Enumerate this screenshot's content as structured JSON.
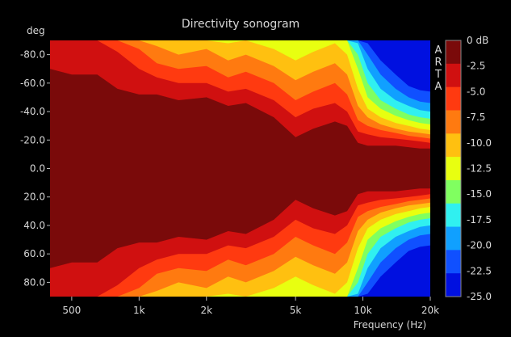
{
  "chart_data": {
    "type": "heatmap",
    "title": "Directivity sonogram",
    "ylabel": "deg",
    "xlabel": "Frequency (Hz)",
    "watermark": "ARTA",
    "x_scale": "log",
    "xlim": [
      400,
      20000
    ],
    "ylim": [
      -90,
      90
    ],
    "x_ticks": [
      {
        "value": 500,
        "label": "500"
      },
      {
        "value": 1000,
        "label": "1k"
      },
      {
        "value": 2000,
        "label": "2k"
      },
      {
        "value": 5000,
        "label": "5k"
      },
      {
        "value": 10000,
        "label": "10k"
      },
      {
        "value": 20000,
        "label": "20k"
      }
    ],
    "y_ticks": [
      {
        "value": -80,
        "label": "-80.0"
      },
      {
        "value": -60,
        "label": "-60.0"
      },
      {
        "value": -40,
        "label": "-40.0"
      },
      {
        "value": -20,
        "label": "-20.0"
      },
      {
        "value": 0,
        "label": "0.0"
      },
      {
        "value": 20,
        "label": "20.0"
      },
      {
        "value": 40,
        "label": "40.0"
      },
      {
        "value": 60,
        "label": "60.0"
      },
      {
        "value": 80,
        "label": "80.0"
      }
    ],
    "colorbar": {
      "unit": "dB",
      "range": [
        -25,
        0
      ],
      "labels": [
        "0 dB",
        "-2.5",
        "-5.0",
        "-7.5",
        "-10.0",
        "-12.5",
        "-15.0",
        "-17.5",
        "-20.0",
        "-22.5",
        "-25.0"
      ],
      "colors": [
        "#7a0a0a",
        "#d01010",
        "#ff3a10",
        "#ff7a10",
        "#ffc010",
        "#e8ff10",
        "#80ff60",
        "#30f0f0",
        "#10a0ff",
        "#1050ff",
        "#0010e0"
      ]
    },
    "contour_frequencies_hz": [
      400,
      500,
      650,
      800,
      1000,
      1200,
      1500,
      2000,
      2500,
      3000,
      4000,
      5000,
      6000,
      7500,
      8500,
      9500,
      10500,
      12000,
      14000,
      16000,
      18000,
      20000
    ],
    "level_boundaries_deg": [
      {
        "level": -2.5,
        "angles": [
          70,
          66,
          66,
          56,
          52,
          52,
          48,
          50,
          44,
          46,
          36,
          22,
          28,
          33,
          30,
          18,
          16,
          16,
          16,
          15,
          14,
          14
        ]
      },
      {
        "level": -5.0,
        "angles": [
          90,
          90,
          90,
          82,
          70,
          64,
          60,
          60,
          54,
          56,
          48,
          36,
          42,
          46,
          40,
          26,
          24,
          22,
          21,
          20,
          19,
          18
        ]
      },
      {
        "level": -7.5,
        "angles": [
          90,
          90,
          90,
          90,
          84,
          74,
          70,
          72,
          64,
          68,
          60,
          48,
          54,
          60,
          52,
          34,
          30,
          27,
          25,
          23,
          22,
          21
        ]
      },
      {
        "level": -10.0,
        "angles": [
          90,
          90,
          90,
          90,
          90,
          86,
          80,
          84,
          76,
          80,
          72,
          62,
          68,
          74,
          66,
          44,
          36,
          31,
          28,
          26,
          25,
          24
        ]
      },
      {
        "level": -12.5,
        "angles": [
          90,
          90,
          90,
          90,
          90,
          90,
          90,
          90,
          88,
          90,
          84,
          76,
          82,
          88,
          80,
          56,
          42,
          36,
          32,
          30,
          28,
          27
        ]
      },
      {
        "level": -15.0,
        "angles": [
          90,
          90,
          90,
          90,
          90,
          90,
          90,
          90,
          90,
          90,
          90,
          90,
          90,
          90,
          90,
          70,
          50,
          42,
          37,
          34,
          32,
          31
        ]
      },
      {
        "level": -17.5,
        "angles": [
          90,
          90,
          90,
          90,
          90,
          90,
          90,
          90,
          90,
          90,
          90,
          90,
          90,
          90,
          90,
          80,
          60,
          48,
          42,
          38,
          36,
          35
        ]
      },
      {
        "level": -20.0,
        "angles": [
          90,
          90,
          90,
          90,
          90,
          90,
          90,
          90,
          90,
          90,
          90,
          90,
          90,
          90,
          90,
          88,
          70,
          56,
          48,
          44,
          41,
          40
        ]
      },
      {
        "level": -22.5,
        "angles": [
          90,
          90,
          90,
          90,
          90,
          90,
          90,
          90,
          90,
          90,
          90,
          90,
          90,
          90,
          90,
          90,
          80,
          66,
          56,
          50,
          47,
          46
        ]
      },
      {
        "level": -25.0,
        "angles": [
          90,
          90,
          90,
          90,
          90,
          90,
          90,
          90,
          90,
          90,
          90,
          90,
          90,
          90,
          90,
          90,
          88,
          76,
          66,
          58,
          55,
          54
        ]
      }
    ]
  }
}
